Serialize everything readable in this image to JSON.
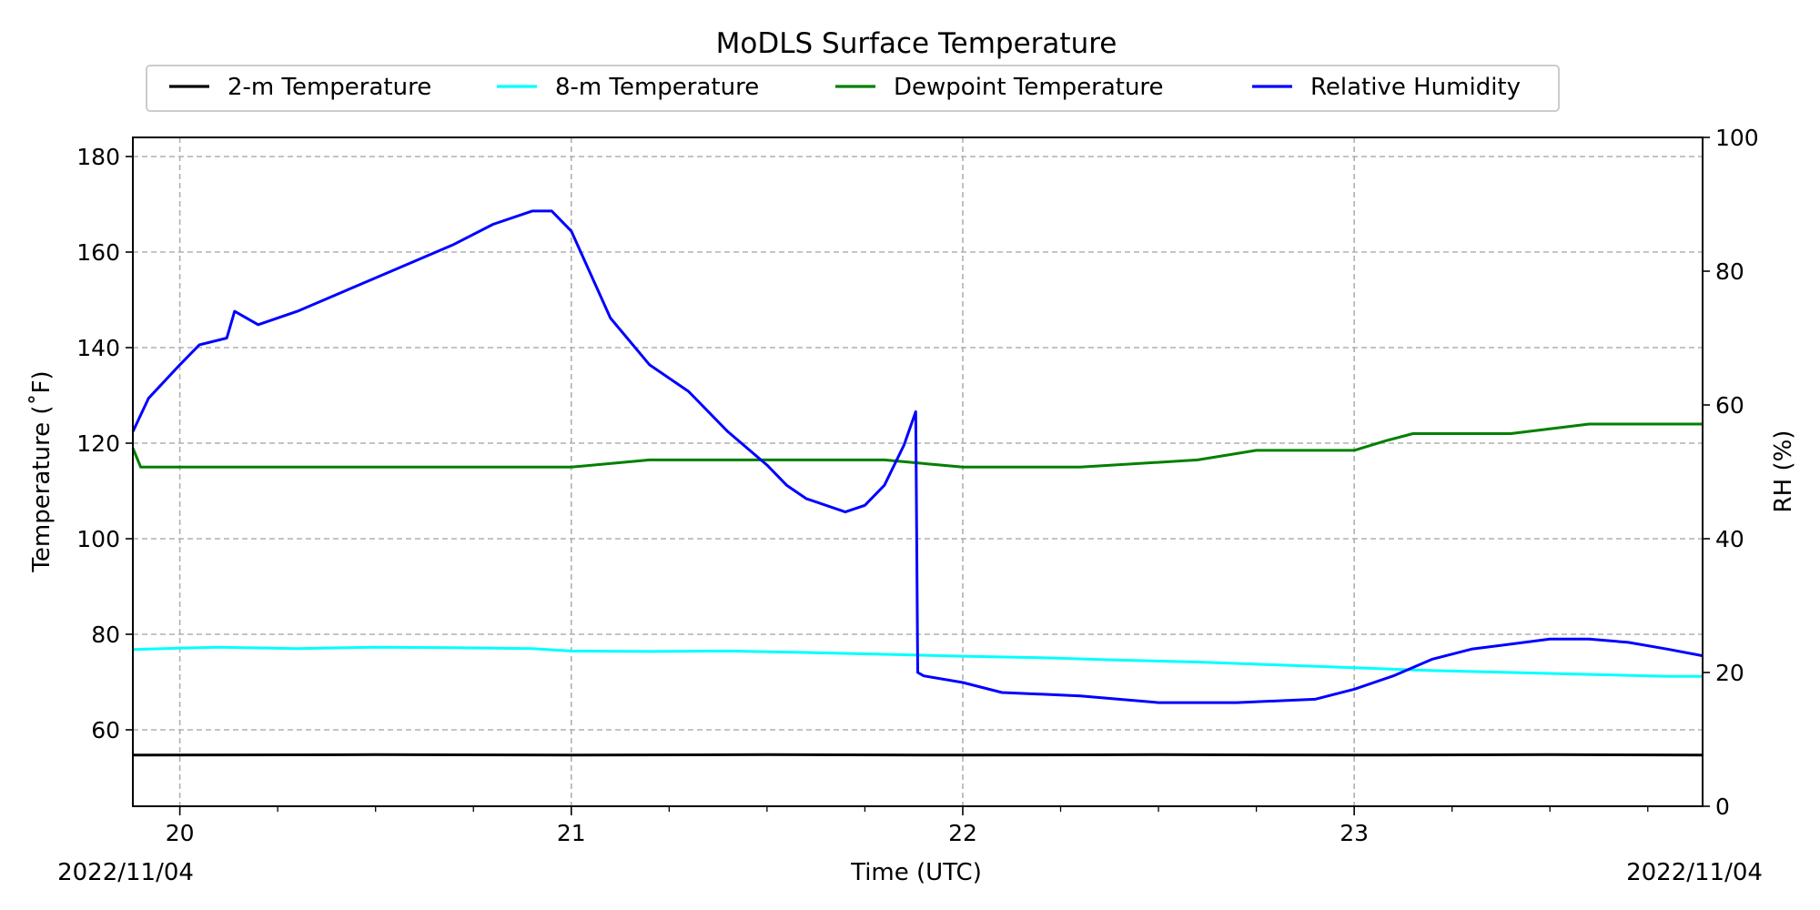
{
  "chart_data": {
    "type": "line",
    "title": "MoDLS Surface Temperature",
    "xlabel": "Time (UTC)",
    "ylabel_left": "Temperature ($^\\circ$F)",
    "ylabel_left_display": "Temperature (˚F)",
    "ylabel_right": "RH (%)",
    "date_left": "2022/11/04",
    "date_right": "2022/11/04",
    "x_unit": "hour (UTC)",
    "xlim": [
      19.88,
      23.89
    ],
    "x_ticks": [
      20,
      21,
      22,
      23
    ],
    "x_tick_labels": [
      "20",
      "21",
      "22",
      "23"
    ],
    "ylim_left": [
      44,
      184
    ],
    "y_ticks_left": [
      60,
      80,
      100,
      120,
      140,
      160,
      180
    ],
    "ylim_right": [
      0,
      100
    ],
    "y_ticks_right": [
      0,
      20,
      40,
      60,
      80,
      100
    ],
    "grid": true,
    "legend_position": "top-center",
    "series": [
      {
        "name": "2-m Temperature",
        "color": "#000000",
        "axis": "left",
        "x": [
          19.88,
          20.5,
          21.0,
          21.5,
          22.0,
          22.5,
          23.0,
          23.5,
          23.89
        ],
        "y": [
          54.7,
          54.8,
          54.7,
          54.8,
          54.7,
          54.8,
          54.7,
          54.8,
          54.7
        ]
      },
      {
        "name": "8-m Temperature",
        "color": "#00ffff",
        "axis": "left",
        "x": [
          19.88,
          20.0,
          20.1,
          20.3,
          20.5,
          20.7,
          20.9,
          21.0,
          21.2,
          21.4,
          21.6,
          21.8,
          22.0,
          22.2,
          22.4,
          22.6,
          22.8,
          23.0,
          23.2,
          23.4,
          23.6,
          23.8,
          23.89
        ],
        "y": [
          76.8,
          77.1,
          77.3,
          77.0,
          77.3,
          77.2,
          77.0,
          76.5,
          76.4,
          76.5,
          76.2,
          75.8,
          75.4,
          75.1,
          74.6,
          74.2,
          73.6,
          73.0,
          72.4,
          72.0,
          71.6,
          71.2,
          71.2
        ]
      },
      {
        "name": "Dewpoint Temperature",
        "color": "#008000",
        "axis": "left",
        "x": [
          19.88,
          19.9,
          20.1,
          20.4,
          20.7,
          21.0,
          21.2,
          21.4,
          21.6,
          21.8,
          22.0,
          22.3,
          22.6,
          22.75,
          23.0,
          23.08,
          23.15,
          23.4,
          23.6,
          23.89
        ],
        "y": [
          119.0,
          115.0,
          115.0,
          115.0,
          115.0,
          115.0,
          116.5,
          116.5,
          116.5,
          116.5,
          115.0,
          115.0,
          116.5,
          118.5,
          118.5,
          120.5,
          122.0,
          122.0,
          124.0,
          124.0
        ]
      },
      {
        "name": "Relative Humidity",
        "color": "#0000ff",
        "axis": "right",
        "x": [
          19.88,
          19.92,
          20.0,
          20.05,
          20.12,
          20.14,
          20.2,
          20.3,
          20.5,
          20.7,
          20.8,
          20.9,
          20.95,
          21.0,
          21.1,
          21.2,
          21.3,
          21.4,
          21.5,
          21.55,
          21.6,
          21.7,
          21.75,
          21.8,
          21.85,
          21.88,
          21.885,
          21.9,
          22.0,
          22.1,
          22.3,
          22.5,
          22.7,
          22.9,
          23.0,
          23.1,
          23.2,
          23.3,
          23.5,
          23.6,
          23.7,
          23.8,
          23.89
        ],
        "y": [
          56,
          61,
          66,
          69,
          70,
          74,
          72,
          74,
          79,
          84,
          87,
          89,
          89,
          86,
          73,
          66,
          62,
          56,
          51,
          48,
          46,
          44,
          45,
          48,
          54,
          59,
          20,
          19.5,
          18.5,
          17.0,
          16.5,
          15.5,
          15.5,
          16.0,
          17.5,
          19.5,
          22.0,
          23.5,
          25.0,
          25.0,
          24.5,
          23.5,
          22.5
        ]
      }
    ]
  }
}
